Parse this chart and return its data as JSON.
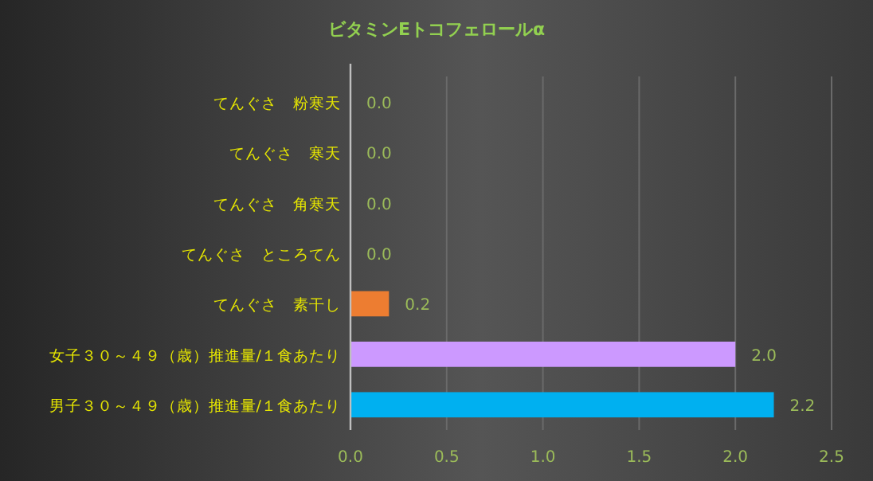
{
  "chart_data": {
    "type": "bar",
    "orientation": "horizontal",
    "title": "ビタミンEトコフェロールα",
    "categories": [
      "てんぐさ　粉寒天",
      "てんぐさ　寒天",
      "てんぐさ　角寒天",
      "てんぐさ　ところてん",
      "てんぐさ　素干し",
      "女子３０～４９（歳）推進量/１食あたり",
      "男子３０～４９（歳）推進量/１食あたり"
    ],
    "values": [
      0.0,
      0.0,
      0.0,
      0.0,
      0.2,
      2.0,
      2.2
    ],
    "value_labels": [
      "0.0",
      "0.0",
      "0.0",
      "0.0",
      "0.2",
      "2.0",
      "2.2"
    ],
    "colors": [
      "#ed7d31",
      "#ed7d31",
      "#ed7d31",
      "#ed7d31",
      "#ed7d31",
      "#cc99ff",
      "#00b0f0"
    ],
    "xlim": [
      0,
      2.5
    ],
    "xticks": [
      {
        "value": 0,
        "label": "0.0"
      },
      {
        "value": 0.5,
        "label": "0.5"
      },
      {
        "value": 1,
        "label": "1.0"
      },
      {
        "value": 1.5,
        "label": "1.5"
      },
      {
        "value": 2,
        "label": "2.0"
      },
      {
        "value": 2.5,
        "label": "2.5"
      }
    ],
    "grid": "x"
  }
}
